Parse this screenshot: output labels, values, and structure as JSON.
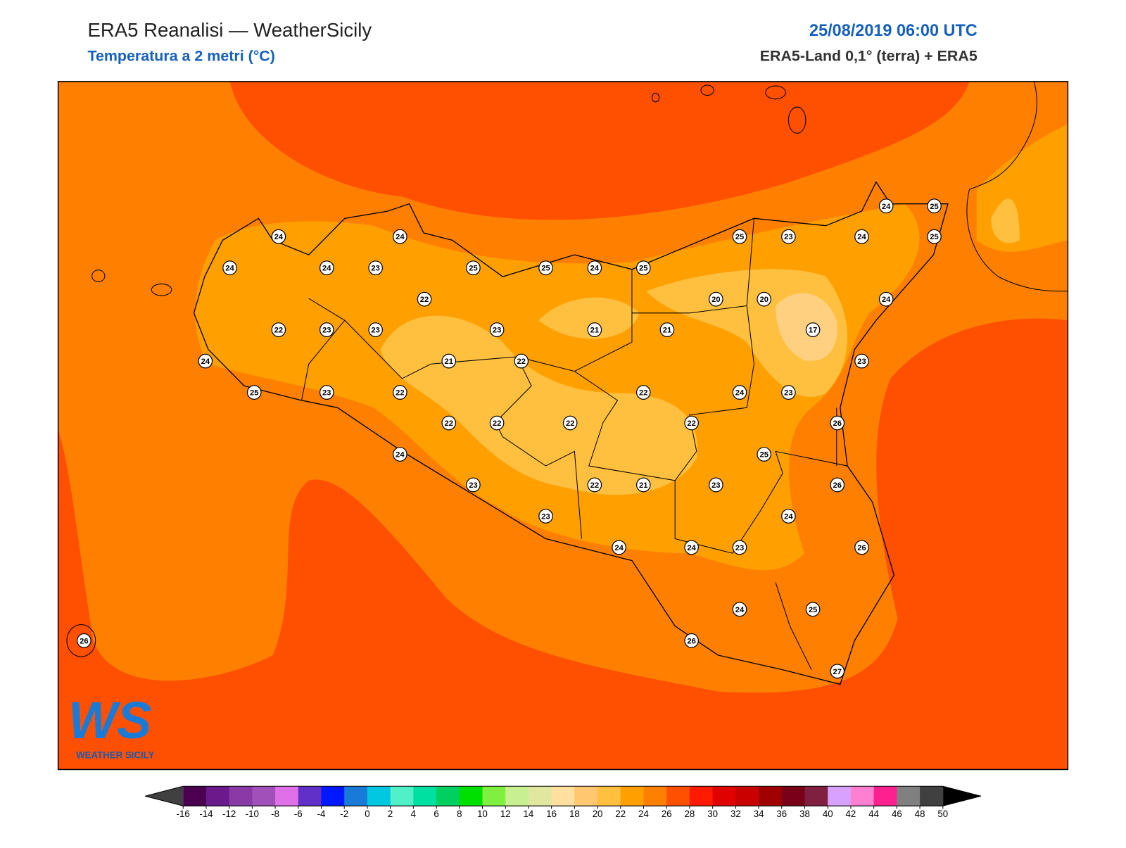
{
  "header": {
    "title": "ERA5 Reanalisi — WeatherSicily",
    "subtitle": "Temperatura a 2 metri (°C)",
    "datetime": "25/08/2019 06:00 UTC",
    "source": "ERA5-Land 0,1° (terra) + ERA5"
  },
  "stations": [
    24,
    24,
    24,
    24,
    23,
    25,
    25,
    24,
    25,
    25,
    23,
    24,
    24,
    25,
    25,
    22,
    20,
    20,
    24,
    22,
    23,
    23,
    23,
    21,
    21,
    17,
    24,
    21,
    22,
    23,
    25,
    23,
    22,
    22,
    24,
    23,
    22,
    22,
    22,
    22,
    26,
    24,
    25,
    23,
    22,
    21,
    23,
    26,
    23,
    24,
    24,
    24,
    23,
    26,
    24,
    25,
    26,
    26,
    27
  ],
  "legend": {
    "ticks": [
      -16,
      -14,
      -12,
      -10,
      -8,
      -6,
      -4,
      -2,
      0,
      2,
      4,
      6,
      8,
      10,
      12,
      14,
      16,
      18,
      20,
      22,
      24,
      26,
      28,
      30,
      32,
      34,
      36,
      38,
      40,
      42,
      44,
      46,
      48,
      50
    ],
    "colors": [
      "#4b0050",
      "#6a1a8a",
      "#8a3aa6",
      "#a050b8",
      "#e070e8",
      "#6030c8",
      "#0018ff",
      "#1a7ad8",
      "#00c8e0",
      "#50f0c8",
      "#00e0a0",
      "#00d060",
      "#00e000",
      "#80f040",
      "#c8f090",
      "#e0e8a0",
      "#ffe0a0",
      "#ffc870",
      "#ffc040",
      "#ffa000",
      "#ff8000",
      "#ff5000",
      "#ff1a00",
      "#e00000",
      "#c80000",
      "#a00000",
      "#780018",
      "#802040",
      "#d8a0ff",
      "#ff80d0",
      "#ff2090",
      "#808080",
      "#404040"
    ],
    "under_color": "#404040",
    "over_color": "#000000"
  },
  "logo": {
    "text": "WS",
    "caption": "WEATHER SICILY"
  }
}
